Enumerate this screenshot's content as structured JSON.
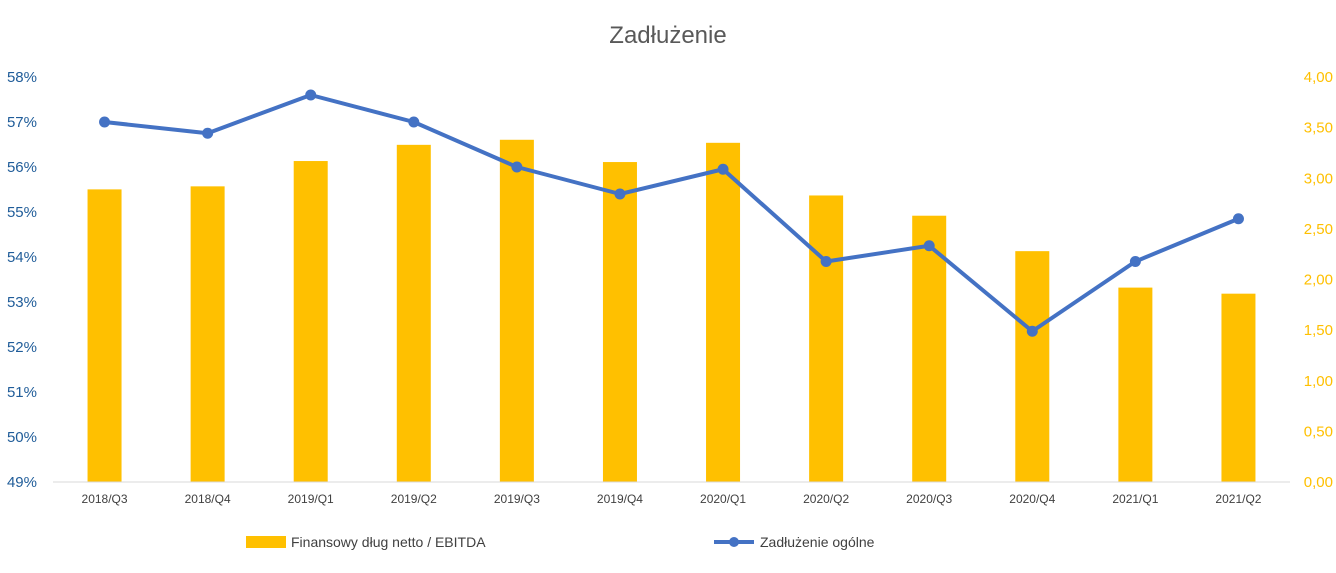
{
  "chart_data": {
    "type": "bar+line",
    "title": "Zadłużenie",
    "categories": [
      "2018/Q3",
      "2018/Q4",
      "2019/Q1",
      "2019/Q2",
      "2019/Q3",
      "2019/Q4",
      "2020/Q1",
      "2020/Q2",
      "2020/Q3",
      "2020/Q4",
      "2021/Q1",
      "2021/Q2"
    ],
    "series": [
      {
        "name": "Finansowy dług netto / EBITDA",
        "type": "bar",
        "axis": "right",
        "color": "#FFC000",
        "values": [
          2.89,
          2.92,
          3.17,
          3.33,
          3.38,
          3.16,
          3.35,
          2.83,
          2.63,
          2.28,
          1.92,
          1.86
        ]
      },
      {
        "name": "Zadłużenie ogólne",
        "type": "line",
        "axis": "left",
        "color": "#4472C4",
        "values": [
          57.0,
          56.75,
          57.6,
          57.0,
          56.0,
          55.4,
          55.95,
          53.9,
          54.25,
          52.35,
          53.9,
          54.85
        ]
      }
    ],
    "y_left": {
      "min": 49,
      "max": 58,
      "step": 1,
      "tick_labels": [
        "49%",
        "50%",
        "51%",
        "52%",
        "53%",
        "54%",
        "55%",
        "56%",
        "57%",
        "58%"
      ],
      "color": "#1F5C99"
    },
    "y_right": {
      "min": 0,
      "max": 4,
      "step": 0.5,
      "tick_labels": [
        "0,00",
        "0,50",
        "1,00",
        "1,50",
        "2,00",
        "2,50",
        "3,00",
        "3,50",
        "4,00"
      ],
      "color": "#FFC000"
    },
    "grid": false,
    "legend_position": "bottom"
  }
}
